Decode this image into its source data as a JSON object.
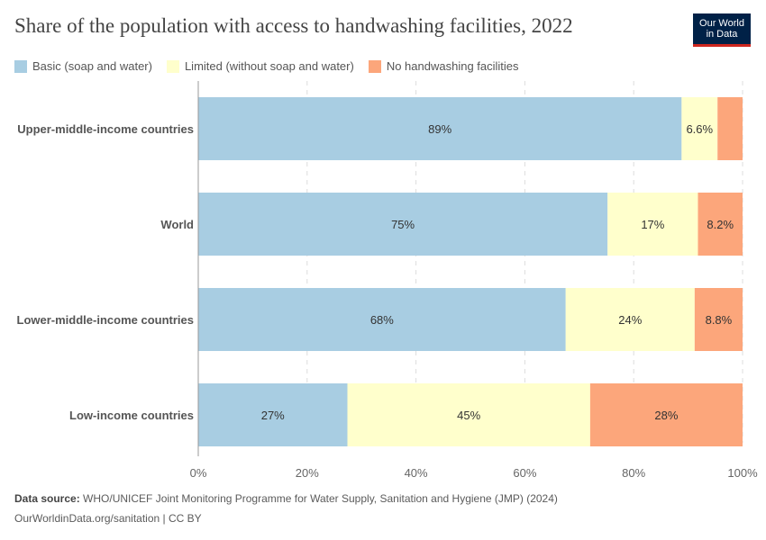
{
  "title": "Share of the population with access to handwashing facilities, 2022",
  "logo": {
    "line1": "Our World",
    "line2": "in Data"
  },
  "source": {
    "label": "Data source:",
    "text": "WHO/UNICEF Joint Monitoring Programme for Water Supply, Sanitation and Hygiene (JMP) (2024)"
  },
  "license": "OurWorldinData.org/sanitation | CC BY",
  "colors": {
    "basic": "#a8cde2",
    "limited": "#ffffcc",
    "none": "#fca67b"
  },
  "chart_data": {
    "type": "bar",
    "orientation": "horizontal",
    "stacked": true,
    "categories": [
      "Upper-middle-income countries",
      "World",
      "Lower-middle-income countries",
      "Low-income countries"
    ],
    "series": [
      {
        "name": "Basic (soap and water)",
        "values": [
          88.8,
          75.2,
          67.5,
          27.4
        ],
        "labels": [
          "89%",
          "75%",
          "68%",
          "27%"
        ],
        "color": "#a8cde2"
      },
      {
        "name": "Limited (without soap and water)",
        "values": [
          6.6,
          16.6,
          23.7,
          44.6
        ],
        "labels": [
          "6.6%",
          "17%",
          "24%",
          "45%"
        ],
        "color": "#ffffcc"
      },
      {
        "name": "No handwashing facilities",
        "values": [
          4.6,
          8.2,
          8.8,
          28.0
        ],
        "labels": [
          "",
          "8.2%",
          "8.8%",
          "28%"
        ],
        "color": "#fca67b"
      }
    ],
    "xlim": [
      0,
      100
    ],
    "xticks": [
      "0%",
      "20%",
      "40%",
      "60%",
      "80%",
      "100%"
    ],
    "grid": "vertical dashed",
    "legend": "top-left"
  }
}
